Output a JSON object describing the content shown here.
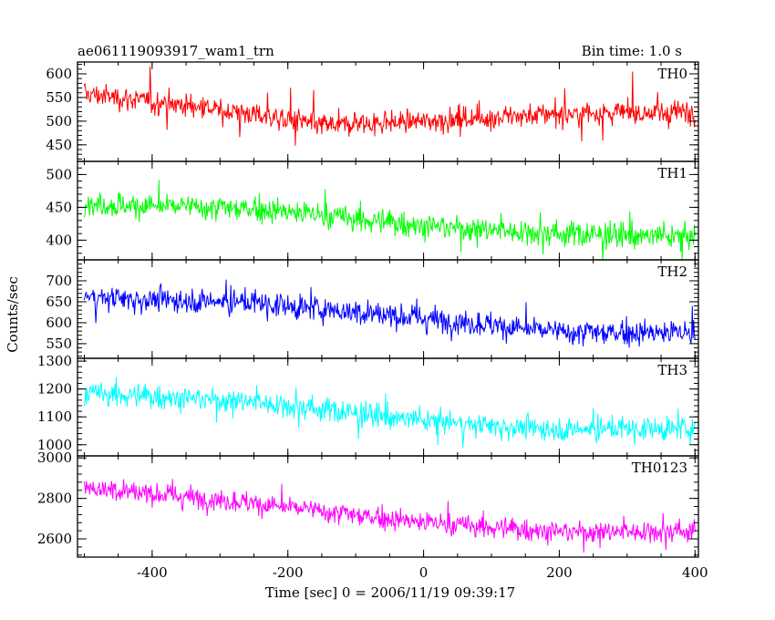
{
  "chart_data": {
    "type": "line",
    "title": "ae061119093917_wam1_trn",
    "subtitle": "Bin time: 1.0 s",
    "xlabel": "Time [sec] 0 = 2006/11/19 09:39:17",
    "ylabel": "Counts/sec",
    "xlim": [
      -510,
      405
    ],
    "x_ticks": [
      -400,
      -200,
      0,
      200,
      400
    ],
    "x_range_data": [
      -500,
      400
    ],
    "panels": [
      {
        "name": "TH0",
        "color": "#ff0000",
        "ylim": [
          415,
          625
        ],
        "y_ticks": [
          450,
          500,
          550,
          600
        ],
        "trend": [
          [
            -500,
            558
          ],
          [
            -300,
            525
          ],
          [
            -150,
            492
          ],
          [
            0,
            500
          ],
          [
            200,
            515
          ],
          [
            400,
            520
          ]
        ],
        "noise_sd": 22
      },
      {
        "name": "TH1",
        "color": "#00ff00",
        "ylim": [
          370,
          520
        ],
        "y_ticks": [
          400,
          450,
          500
        ],
        "trend": [
          [
            -500,
            455
          ],
          [
            -250,
            448
          ],
          [
            0,
            422
          ],
          [
            200,
            410
          ],
          [
            400,
            404
          ]
        ],
        "noise_sd": 17
      },
      {
        "name": "TH2",
        "color": "#0000ff",
        "ylim": [
          515,
          750
        ],
        "y_ticks": [
          550,
          600,
          650,
          700
        ],
        "trend": [
          [
            -500,
            662
          ],
          [
            -250,
            648
          ],
          [
            0,
            610
          ],
          [
            200,
            578
          ],
          [
            400,
            575
          ]
        ],
        "noise_sd": 27
      },
      {
        "name": "TH3",
        "color": "#00ffff",
        "ylim": [
          960,
          1310
        ],
        "y_ticks": [
          1000,
          1100,
          1200,
          1300
        ],
        "trend": [
          [
            -500,
            1185
          ],
          [
            -250,
            1155
          ],
          [
            0,
            1085
          ],
          [
            200,
            1055
          ],
          [
            400,
            1060
          ]
        ],
        "noise_sd": 38
      },
      {
        "name": "TH0123",
        "color": "#ff00ff",
        "ylim": [
          2510,
          3010
        ],
        "y_ticks": [
          2600,
          2800,
          3000
        ],
        "trend": [
          [
            -500,
            2855
          ],
          [
            -250,
            2775
          ],
          [
            0,
            2680
          ],
          [
            200,
            2635
          ],
          [
            400,
            2640
          ]
        ],
        "noise_sd": 48
      }
    ],
    "grid": false,
    "legend": "none"
  }
}
